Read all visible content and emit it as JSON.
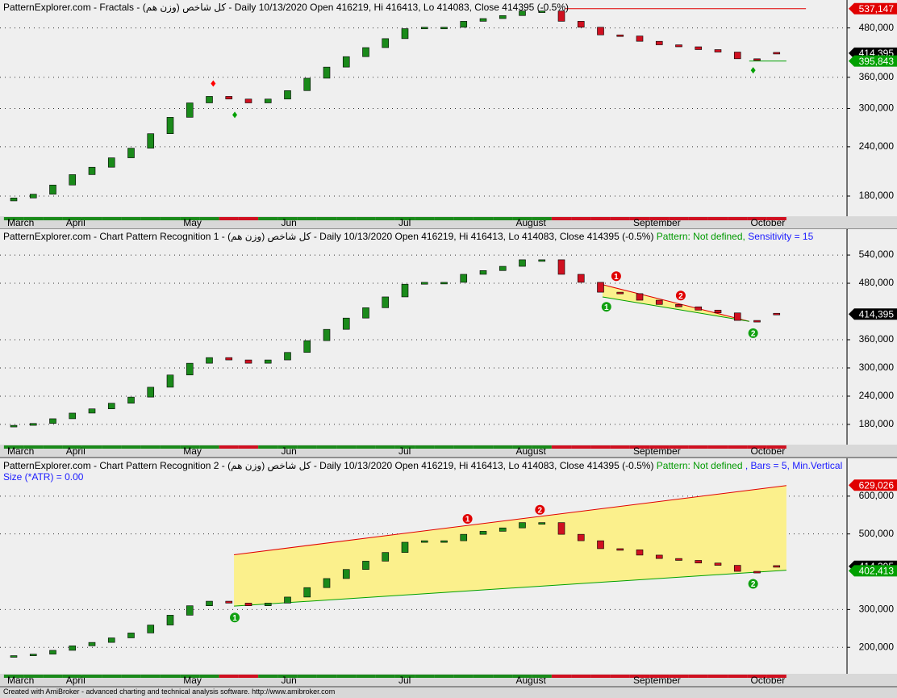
{
  "chart_data": [
    {
      "type": "candlestick",
      "title_parts": [
        {
          "text": "PatternExplorer.com - Fractals - کل شاخص (وزن هم) - Daily 10/13/2020 Open 416219, Hi 416413, Lo 414083, Close 414395 (-0.5%)",
          "color": "#000000"
        }
      ],
      "categories": [
        "March",
        null,
        null,
        "April",
        null,
        null,
        null,
        null,
        null,
        "May",
        null,
        null,
        null,
        null,
        "Jun",
        null,
        null,
        null,
        null,
        null,
        "Jul",
        null,
        null,
        null,
        null,
        null,
        "August",
        null,
        null,
        null,
        null,
        null,
        "September",
        null,
        null,
        null,
        null,
        null,
        "October",
        null
      ],
      "open": [
        175000,
        178000,
        182000,
        192000,
        204000,
        213000,
        225000,
        238000,
        259000,
        285000,
        310000,
        322000,
        317000,
        310000,
        317000,
        333000,
        358000,
        382000,
        406000,
        428000,
        451000,
        478000,
        482000,
        482000,
        499000,
        507000,
        516000,
        530000,
        530000,
        499000,
        482000,
        461000,
        458000,
        444000,
        435000,
        430000,
        423000,
        417000,
        401000,
        416219
      ],
      "close": [
        178000,
        182000,
        192000,
        204000,
        213000,
        225000,
        238000,
        259000,
        285000,
        310000,
        322000,
        317000,
        310000,
        317000,
        333000,
        358000,
        382000,
        406000,
        428000,
        451000,
        478000,
        482000,
        482000,
        499000,
        507000,
        516000,
        530000,
        530000,
        499000,
        482000,
        461000,
        458000,
        444000,
        435000,
        430000,
        423000,
        417000,
        401000,
        400000,
        414395
      ],
      "up_color": "#1a8a1a",
      "down_color": "#d01020",
      "log_scale": true,
      "ylim": [
        160000,
        565000
      ],
      "yticks": [
        {
          "value": 180000,
          "label": "180,000"
        },
        {
          "value": 240000,
          "label": "240,000"
        },
        {
          "value": 300000,
          "label": "300,000"
        },
        {
          "value": 360000,
          "label": "360,000"
        },
        {
          "value": 480000,
          "label": "480,000"
        }
      ],
      "grid": true,
      "markers": [
        {
          "x": 10.2,
          "value": 347000,
          "color": "#ff0000"
        },
        {
          "x": 11.3,
          "value": 289000,
          "color": "#00a000"
        },
        {
          "x": 37.8,
          "value": 375000,
          "color": "#00a000"
        }
      ],
      "price_tags": [
        {
          "value": 537147,
          "label": "537,147",
          "color": "#e00000",
          "line_x": [
            28.2,
            40.5
          ]
        },
        {
          "value": 414395,
          "label": "414,395",
          "color": "#000000"
        },
        {
          "value": 395843,
          "label": "395,843",
          "color": "#00a000",
          "line_x": [
            37.6,
            39.5
          ]
        }
      ]
    },
    {
      "type": "candlestick",
      "title_parts": [
        {
          "text": "PatternExplorer.com - Chart Pattern Recognition 1 - کل شاخص (وزن هم) - Daily 10/13/2020 Open 416219, Hi 416413, Lo 414083, Close 414395 (-0.5%)",
          "color": "#000000"
        },
        {
          "text": "Pattern: Not defined,",
          "color": "#009900"
        },
        {
          "text": "Sensitivity = 15",
          "color": "#1a1aff"
        }
      ],
      "categories": [
        "March",
        null,
        null,
        "April",
        null,
        null,
        null,
        null,
        null,
        "May",
        null,
        null,
        null,
        null,
        "Jun",
        null,
        null,
        null,
        null,
        null,
        "Jul",
        null,
        null,
        null,
        null,
        null,
        "August",
        null,
        null,
        null,
        null,
        null,
        "September",
        null,
        null,
        null,
        null,
        null,
        "October",
        null
      ],
      "open": [
        175000,
        178000,
        182000,
        192000,
        204000,
        213000,
        225000,
        238000,
        259000,
        285000,
        310000,
        322000,
        317000,
        310000,
        317000,
        333000,
        358000,
        382000,
        406000,
        428000,
        451000,
        478000,
        482000,
        482000,
        499000,
        507000,
        516000,
        530000,
        530000,
        499000,
        482000,
        461000,
        458000,
        444000,
        435000,
        430000,
        423000,
        417000,
        401000,
        416219
      ],
      "close": [
        178000,
        182000,
        192000,
        204000,
        213000,
        225000,
        238000,
        259000,
        285000,
        310000,
        322000,
        317000,
        310000,
        317000,
        333000,
        358000,
        382000,
        406000,
        428000,
        451000,
        478000,
        482000,
        482000,
        499000,
        507000,
        516000,
        530000,
        530000,
        499000,
        482000,
        461000,
        458000,
        444000,
        435000,
        430000,
        423000,
        417000,
        401000,
        400000,
        414395
      ],
      "up_color": "#1a8a1a",
      "down_color": "#d01020",
      "log_scale": false,
      "ylim": [
        137000,
        595000
      ],
      "yticks": [
        {
          "value": 180000,
          "label": "180,000"
        },
        {
          "value": 240000,
          "label": "240,000"
        },
        {
          "value": 300000,
          "label": "300,000"
        },
        {
          "value": 360000,
          "label": "360,000"
        },
        {
          "value": 480000,
          "label": "480,000"
        },
        {
          "value": 540000,
          "label": "540,000"
        }
      ],
      "grid": true,
      "channel": {
        "x": [
          30.1,
          37.6
        ],
        "upper": [
          477000,
          399000
        ],
        "lower": [
          451000,
          399000
        ],
        "upper_color": "#e00000",
        "lower_color": "#00a000",
        "fill": "#fbf08c"
      },
      "pivots": [
        {
          "label": "1",
          "x": 30.8,
          "value": 495000,
          "color": "#e00000"
        },
        {
          "label": "2",
          "x": 34.1,
          "value": 454000,
          "color": "#e00000"
        },
        {
          "label": "1",
          "x": 30.3,
          "value": 430000,
          "color": "#10a010"
        },
        {
          "label": "2",
          "x": 37.8,
          "value": 374000,
          "color": "#10a010"
        }
      ],
      "price_tags": [
        {
          "value": 414395,
          "label": "414,395",
          "color": "#000000"
        }
      ]
    },
    {
      "type": "candlestick",
      "title_parts": [
        {
          "text": "PatternExplorer.com - Chart Pattern Recognition 2 - کل شاخص (وزن هم) - Daily 10/13/2020 Open 416219, Hi 416413, Lo 414083, Close 414395 (-0.5%)",
          "color": "#000000"
        },
        {
          "text": "Pattern: Not defined",
          "color": "#009900"
        },
        {
          "text": ", Bars = 5, Min.Vertical Size (*ATR) = 0.00",
          "color": "#1a1aff"
        }
      ],
      "categories": [
        "March",
        null,
        null,
        "April",
        null,
        null,
        null,
        null,
        null,
        "May",
        null,
        null,
        null,
        null,
        "Jun",
        null,
        null,
        null,
        null,
        null,
        "Jul",
        null,
        null,
        null,
        null,
        null,
        "August",
        null,
        null,
        null,
        null,
        null,
        "September",
        null,
        null,
        null,
        null,
        null,
        "October",
        null
      ],
      "open": [
        175000,
        178000,
        182000,
        192000,
        204000,
        213000,
        225000,
        238000,
        259000,
        285000,
        310000,
        322000,
        317000,
        310000,
        317000,
        333000,
        358000,
        382000,
        406000,
        428000,
        451000,
        478000,
        482000,
        482000,
        499000,
        507000,
        516000,
        530000,
        530000,
        499000,
        482000,
        461000,
        458000,
        444000,
        435000,
        430000,
        423000,
        417000,
        401000,
        416219
      ],
      "close": [
        178000,
        182000,
        192000,
        204000,
        213000,
        225000,
        238000,
        259000,
        285000,
        310000,
        322000,
        317000,
        310000,
        317000,
        333000,
        358000,
        382000,
        406000,
        428000,
        451000,
        478000,
        482000,
        482000,
        499000,
        507000,
        516000,
        530000,
        530000,
        499000,
        482000,
        461000,
        458000,
        444000,
        435000,
        430000,
        423000,
        417000,
        401000,
        400000,
        414395
      ],
      "up_color": "#1a8a1a",
      "down_color": "#d01020",
      "log_scale": false,
      "ylim": [
        130000,
        700000
      ],
      "yticks": [
        {
          "value": 200000,
          "label": "200,000"
        },
        {
          "value": 300000,
          "label": "300,000"
        },
        {
          "value": 500000,
          "label": "500,000"
        },
        {
          "value": 600000,
          "label": "600,000"
        }
      ],
      "grid": true,
      "channel": {
        "x": [
          11.26,
          39.5
        ],
        "upper": [
          445000,
          628000
        ],
        "lower": [
          309000,
          404000
        ],
        "upper_color": "#e00000",
        "lower_color": "#00a000",
        "fill": "#fbf08c"
      },
      "pivots": [
        {
          "label": "1",
          "x": 23.2,
          "value": 540000,
          "color": "#e00000"
        },
        {
          "label": "2",
          "x": 26.9,
          "value": 564000,
          "color": "#e00000"
        },
        {
          "label": "1",
          "x": 11.3,
          "value": 279000,
          "color": "#10a010"
        },
        {
          "label": "2",
          "x": 37.8,
          "value": 368000,
          "color": "#10a010"
        }
      ],
      "price_tags": [
        {
          "value": 629026,
          "label": "629,026",
          "color": "#e00000"
        },
        {
          "value": 414395,
          "label": "414,395",
          "color": "#000000"
        },
        {
          "value": 402413,
          "label": "402,413",
          "color": "#00a000"
        }
      ]
    }
  ],
  "footer": "Created with AmiBroker - advanced charting and technical analysis software. http://www.amibroker.com"
}
